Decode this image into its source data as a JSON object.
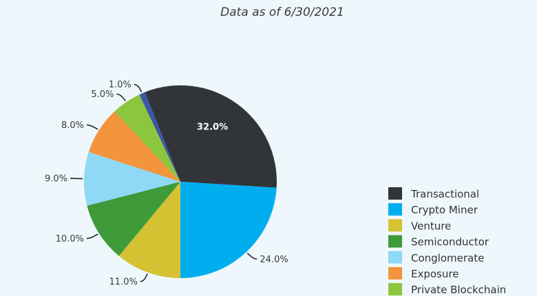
{
  "subtitle": "Data as of 6/30/2021",
  "chart_data": {
    "type": "pie",
    "series": [
      {
        "name": "Transactional",
        "value": 32.0,
        "label": "32.0%",
        "color": "#313438"
      },
      {
        "name": "Crypto Miner",
        "value": 24.0,
        "label": "24.0%",
        "color": "#00aeef"
      },
      {
        "name": "Venture",
        "value": 11.0,
        "label": "11.0%",
        "color": "#d4c232"
      },
      {
        "name": "Semiconductor",
        "value": 10.0,
        "label": "10.0%",
        "color": "#3f9a3a"
      },
      {
        "name": "Conglomerate",
        "value": 9.0,
        "label": "9.0%",
        "color": "#8fd8f6"
      },
      {
        "name": "Exposure",
        "value": 8.0,
        "label": "8.0%",
        "color": "#f4943c"
      },
      {
        "name": "Private Blockchain",
        "value": 5.0,
        "label": "5.0%",
        "color": "#8cc63e"
      },
      {
        "name": "",
        "value": 1.0,
        "label": "1.0%",
        "color": "#3d57a6"
      }
    ],
    "legend_position": "right"
  }
}
